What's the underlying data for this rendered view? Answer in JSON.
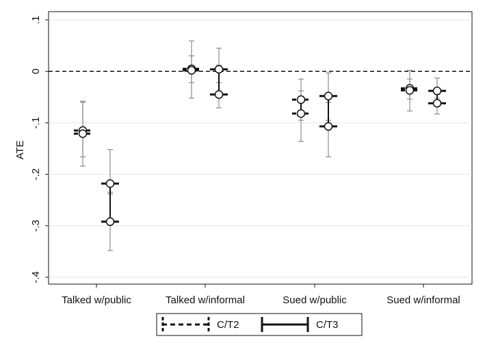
{
  "chart_data": {
    "type": "scatter",
    "title": "",
    "xlabel": "",
    "ylabel": "ATE",
    "ylim": [
      -0.4,
      0.1
    ],
    "yticks": [
      0.1,
      0,
      -0.1,
      -0.2,
      -0.3,
      -0.4
    ],
    "ytick_labels": [
      ".1",
      "0",
      "-.1",
      "-.2",
      "-.3",
      "-.4"
    ],
    "categories": [
      "Talked w/public",
      "Talked w/informal",
      "Sued w/public",
      "Sued w/informal"
    ],
    "reference_line": 0,
    "grid": "horizontal",
    "legend_position": "bottom",
    "series": [
      {
        "name": "C/T2",
        "line_style": "dashed",
        "estimates": [
          {
            "lo": -0.121,
            "hi": -0.115,
            "ci_lo": [
              -0.184,
              -0.166
            ],
            "ci_hi": [
              -0.058,
              -0.06
            ]
          },
          {
            "lo": 0.002,
            "hi": 0.005,
            "ci_lo": [
              -0.052,
              -0.022
            ],
            "ci_hi": [
              0.03,
              0.059
            ]
          },
          {
            "lo": -0.082,
            "hi": -0.055,
            "ci_lo": [
              -0.136,
              -0.095
            ],
            "ci_hi": [
              -0.015,
              -0.038
            ]
          },
          {
            "lo": -0.037,
            "hi": -0.033,
            "ci_lo": [
              -0.077,
              -0.054
            ],
            "ci_hi": [
              -0.015,
              0.002
            ]
          }
        ]
      },
      {
        "name": "C/T3",
        "line_style": "solid",
        "estimates": [
          {
            "lo": -0.292,
            "hi": -0.218,
            "ci_lo": [
              -0.348,
              -0.238
            ],
            "ci_hi": [
              -0.152,
              -0.235
            ]
          },
          {
            "lo": -0.045,
            "hi": 0.004,
            "ci_lo": [
              -0.071,
              -0.022
            ],
            "ci_hi": [
              0.012,
              0.045
            ]
          },
          {
            "lo": -0.107,
            "hi": -0.048,
            "ci_lo": [
              -0.166,
              -0.095
            ],
            "ci_hi": [
              -0.003,
              -0.06
            ]
          },
          {
            "lo": -0.062,
            "hi": -0.038,
            "ci_lo": [
              -0.083,
              -0.052
            ],
            "ci_hi": [
              -0.013,
              -0.045
            ]
          }
        ]
      }
    ],
    "colors": {
      "estimate": "#111111",
      "ci": "#8c8c8c",
      "grid": "#e6e6e6",
      "axis": "#111111"
    }
  }
}
